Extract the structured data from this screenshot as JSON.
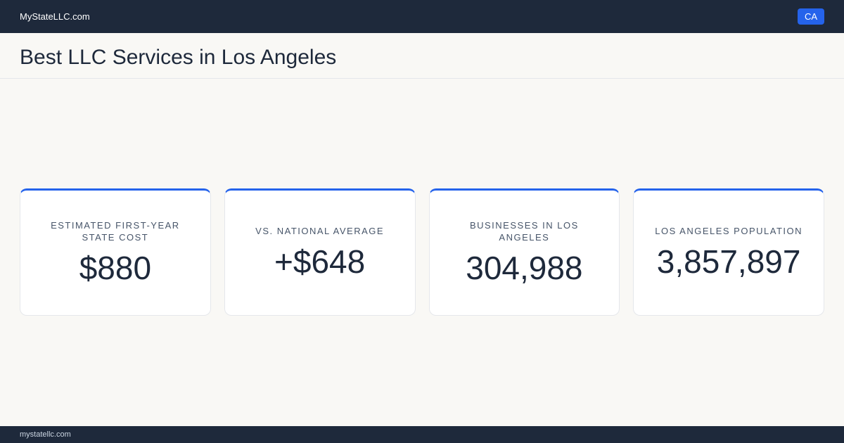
{
  "header": {
    "brand": "MyStateLLC.com",
    "state": "CA",
    "title": "Best LLC Services in Los Angeles"
  },
  "stats": [
    {
      "label": "Estimated first-year state cost",
      "value": "$880"
    },
    {
      "label": "vs. national average",
      "value": "+$648"
    },
    {
      "label": "Businesses in Los Angeles",
      "value": "304,988"
    },
    {
      "label": "Los Angeles population",
      "value": "3,857,897"
    }
  ],
  "footer": {
    "url": "mystatellc.com"
  }
}
